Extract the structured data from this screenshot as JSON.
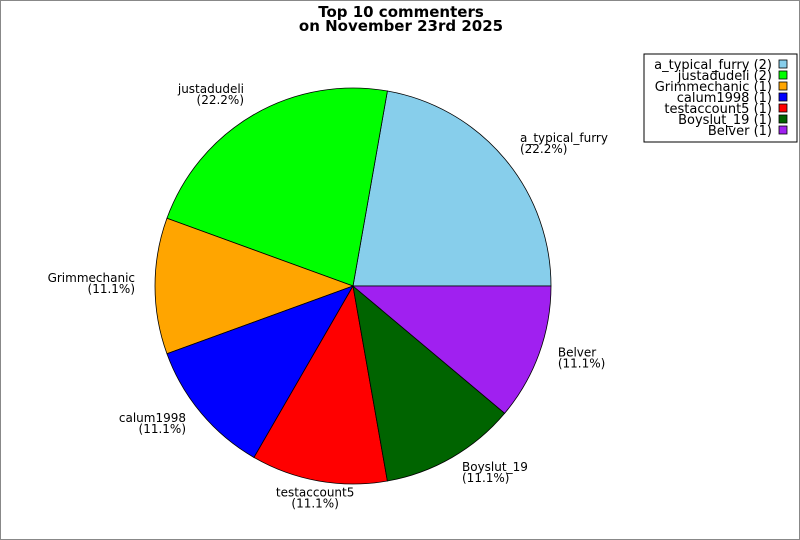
{
  "chart_data": {
    "type": "pie",
    "title_lines": [
      "Top 10 commenters",
      "on November 23rd 2025"
    ],
    "start_angle_deg": 0,
    "direction": "counterclockwise",
    "legend_position": "top-right",
    "slices": [
      {
        "label": "a_typical_furry",
        "value": 2,
        "percent": "(22.2%)",
        "legend": "a_typical_furry (2)",
        "color": "#87CEEB"
      },
      {
        "label": "justadudeli",
        "value": 2,
        "percent": "(22.2%)",
        "legend": "justadudeli (2)",
        "color": "#00FF00"
      },
      {
        "label": "Grimmechanic",
        "value": 1,
        "percent": "(11.1%)",
        "legend": "Grimmechanic (1)",
        "color": "#FFA500"
      },
      {
        "label": "calum1998",
        "value": 1,
        "percent": "(11.1%)",
        "legend": "calum1998 (1)",
        "color": "#0000FF"
      },
      {
        "label": "testaccount5",
        "value": 1,
        "percent": "(11.1%)",
        "legend": "testaccount5 (1)",
        "color": "#FF0000"
      },
      {
        "label": "Boyslut_19",
        "value": 1,
        "percent": "(11.1%)",
        "legend": "Boyslut_19 (1)",
        "color": "#006400"
      },
      {
        "label": "Belver",
        "value": 1,
        "percent": "(11.1%)",
        "legend": "Belver (1)",
        "color": "#A020F0"
      }
    ]
  }
}
